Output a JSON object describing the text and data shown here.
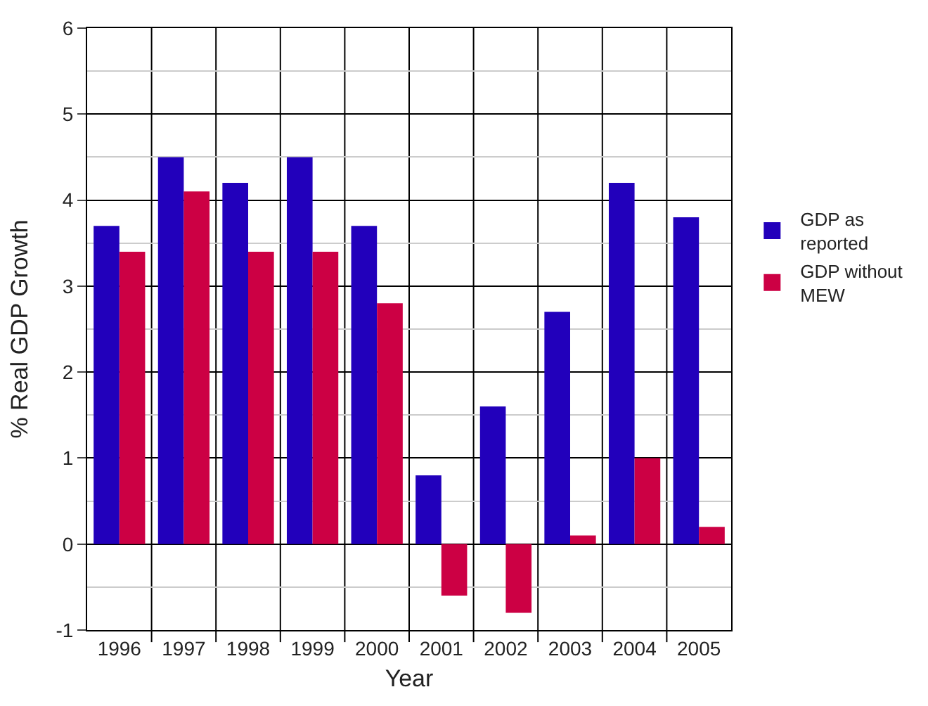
{
  "chart_data": {
    "type": "bar",
    "xlabel": "Year",
    "ylabel": "% Real GDP Growth",
    "categories": [
      "1996",
      "1997",
      "1998",
      "1999",
      "2000",
      "2001",
      "2002",
      "2003",
      "2004",
      "2005"
    ],
    "series": [
      {
        "name": "GDP as reported",
        "color": "#2200bb",
        "values": [
          3.7,
          4.5,
          4.2,
          4.5,
          3.7,
          0.8,
          1.6,
          2.7,
          4.2,
          3.8
        ]
      },
      {
        "name": "GDP without MEW",
        "color": "#cc0044",
        "values": [
          3.4,
          4.1,
          3.4,
          3.4,
          2.8,
          -0.6,
          -0.8,
          0.1,
          1.0,
          0.2
        ]
      }
    ],
    "ylim": [
      -1,
      6
    ],
    "yticks": [
      -1,
      0,
      1,
      2,
      3,
      4,
      5,
      6
    ],
    "grid": true,
    "legend": "right"
  }
}
